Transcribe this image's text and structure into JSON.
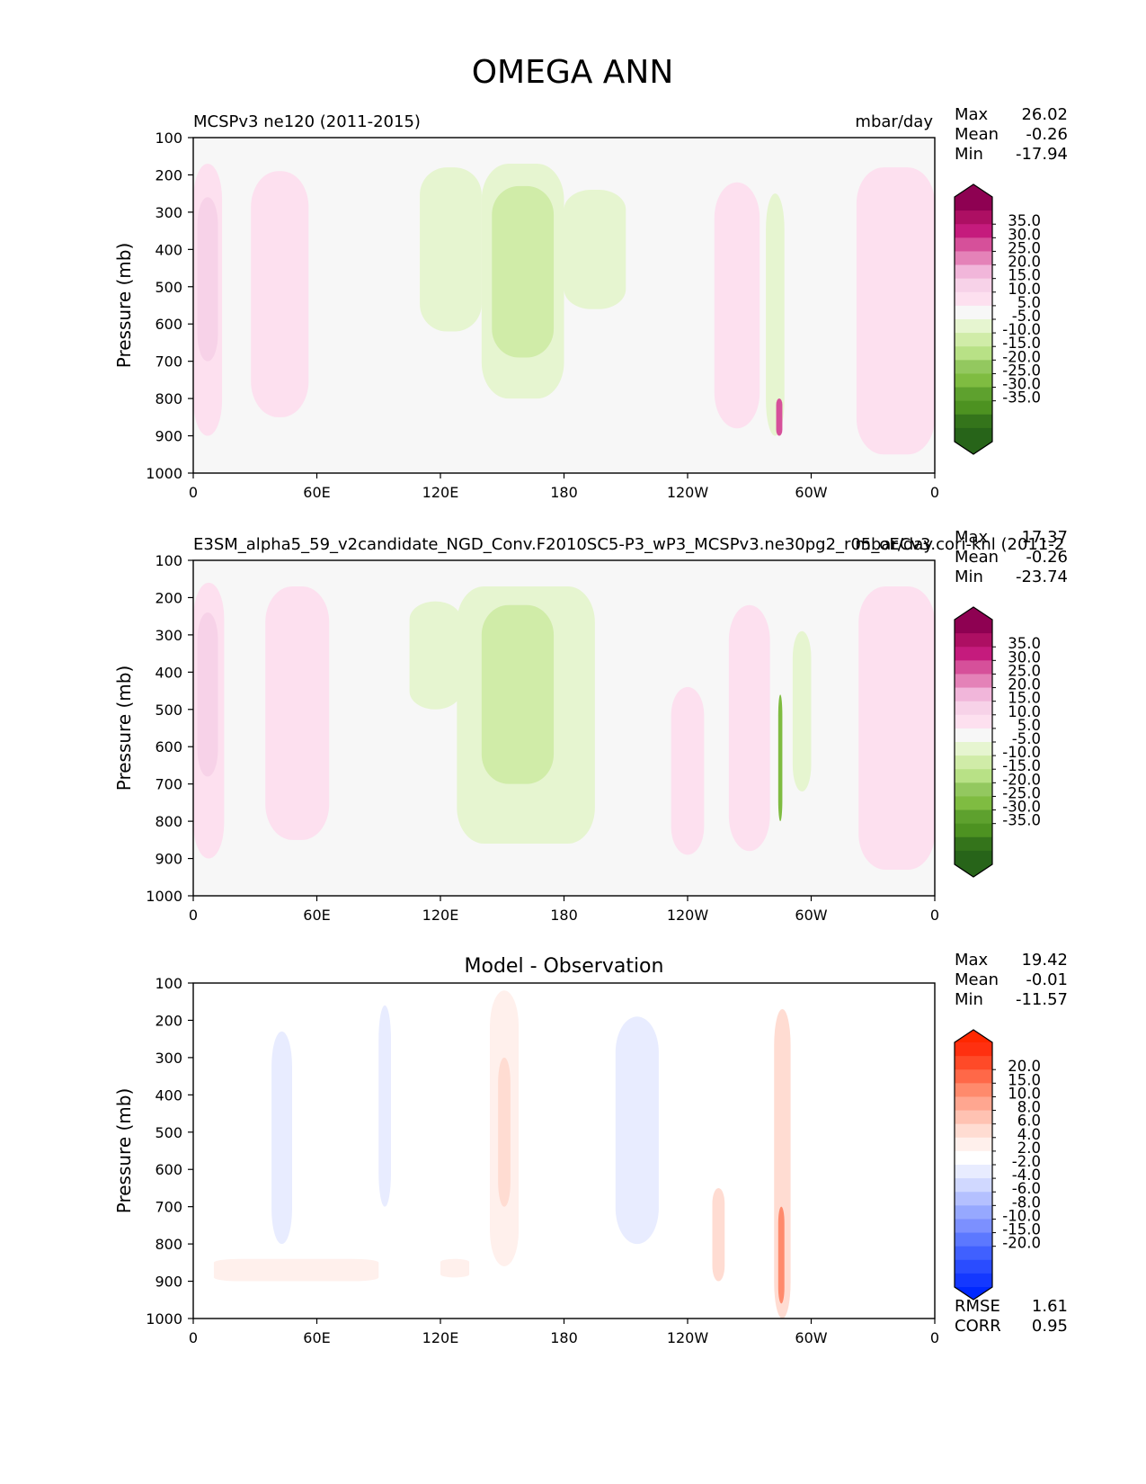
{
  "figure": {
    "title": "OMEGA ANN"
  },
  "chart_data": [
    {
      "type": "heatmap",
      "title_left": "MCSPv3 ne120 (2011-2015)",
      "title_right": "mbar/day",
      "title_center": "",
      "ylabel": "Pressure (mb)",
      "yticks": [
        "100",
        "200",
        "300",
        "400",
        "500",
        "600",
        "700",
        "800",
        "900",
        "1000"
      ],
      "ylim": [
        100,
        1000
      ],
      "xticks": [
        "0",
        "60E",
        "120E",
        "180",
        "120W",
        "60W",
        "0"
      ],
      "xlim": [
        0,
        360
      ],
      "stats": [
        {
          "label": "Max",
          "value": "26.02"
        },
        {
          "label": "Mean",
          "value": "-0.26"
        },
        {
          "label": "Min",
          "value": "-17.94"
        }
      ],
      "extra_stats": [],
      "colorbar": {
        "labels": [
          "35.0",
          "30.0",
          "25.0",
          "20.0",
          "15.0",
          "10.0",
          "5.0",
          "-5.0",
          "-10.0",
          "-15.0",
          "-20.0",
          "-25.0",
          "-30.0",
          "-35.0"
        ],
        "colors": [
          "#8e0152",
          "#ad0f63",
          "#c51b7d",
          "#d6509a",
          "#e482b8",
          "#f1b6da",
          "#f7d2e8",
          "#fde0ef",
          "#f7f7f7",
          "#e6f5d0",
          "#d0eca8",
          "#b8e186",
          "#93c85f",
          "#7fbc41",
          "#5ea12e",
          "#4d9221",
          "#34741b",
          "#276419"
        ],
        "top_color": "#8e0152",
        "bottom_color": "#276419"
      },
      "regions": [
        {
          "lon": [
            0,
            14
          ],
          "p": [
            170,
            900
          ],
          "level": "pos1"
        },
        {
          "lon": [
            2,
            12
          ],
          "p": [
            260,
            700
          ],
          "level": "pos2"
        },
        {
          "lon": [
            28,
            56
          ],
          "p": [
            190,
            850
          ],
          "level": "pos1"
        },
        {
          "lon": [
            110,
            140
          ],
          "p": [
            180,
            620
          ],
          "level": "neg1"
        },
        {
          "lon": [
            140,
            180
          ],
          "p": [
            170,
            800
          ],
          "level": "neg1"
        },
        {
          "lon": [
            145,
            175
          ],
          "p": [
            230,
            690
          ],
          "level": "neg2"
        },
        {
          "lon": [
            180,
            210
          ],
          "p": [
            240,
            560
          ],
          "level": "neg1"
        },
        {
          "lon": [
            253,
            275
          ],
          "p": [
            220,
            880
          ],
          "level": "pos1"
        },
        {
          "lon": [
            278,
            287
          ],
          "p": [
            250,
            900
          ],
          "level": "neg1"
        },
        {
          "lon": [
            283,
            286
          ],
          "p": [
            800,
            900
          ],
          "level": "pos4"
        },
        {
          "lon": [
            322,
            360
          ],
          "p": [
            180,
            950
          ],
          "level": "pos1"
        }
      ]
    },
    {
      "type": "heatmap",
      "title_left": "E3SM_alpha5_59_v2candidate_NGD_Conv.F2010SC5-P3_wP3_MCSPv3.ne30pg2_r05_oECv3.cori-knl (2011-2",
      "title_right": "mbar/day",
      "title_center": "",
      "ylabel": "Pressure (mb)",
      "yticks": [
        "100",
        "200",
        "300",
        "400",
        "500",
        "600",
        "700",
        "800",
        "900",
        "1000"
      ],
      "ylim": [
        100,
        1000
      ],
      "xticks": [
        "0",
        "60E",
        "120E",
        "180",
        "120W",
        "60W",
        "0"
      ],
      "xlim": [
        0,
        360
      ],
      "stats": [
        {
          "label": "Max",
          "value": "17.37"
        },
        {
          "label": "Mean",
          "value": "-0.26"
        },
        {
          "label": "Min",
          "value": "-23.74"
        }
      ],
      "extra_stats": [],
      "colorbar": {
        "labels": [
          "35.0",
          "30.0",
          "25.0",
          "20.0",
          "15.0",
          "10.0",
          "5.0",
          "-5.0",
          "-10.0",
          "-15.0",
          "-20.0",
          "-25.0",
          "-30.0",
          "-35.0"
        ],
        "colors": [
          "#8e0152",
          "#ad0f63",
          "#c51b7d",
          "#d6509a",
          "#e482b8",
          "#f1b6da",
          "#f7d2e8",
          "#fde0ef",
          "#f7f7f7",
          "#e6f5d0",
          "#d0eca8",
          "#b8e186",
          "#93c85f",
          "#7fbc41",
          "#5ea12e",
          "#4d9221",
          "#34741b",
          "#276419"
        ],
        "top_color": "#8e0152",
        "bottom_color": "#276419"
      },
      "regions": [
        {
          "lon": [
            0,
            15
          ],
          "p": [
            160,
            900
          ],
          "level": "pos1"
        },
        {
          "lon": [
            2,
            12
          ],
          "p": [
            240,
            680
          ],
          "level": "pos2"
        },
        {
          "lon": [
            35,
            66
          ],
          "p": [
            170,
            850
          ],
          "level": "pos1"
        },
        {
          "lon": [
            105,
            130
          ],
          "p": [
            210,
            500
          ],
          "level": "neg1"
        },
        {
          "lon": [
            128,
            195
          ],
          "p": [
            170,
            860
          ],
          "level": "neg1"
        },
        {
          "lon": [
            140,
            175
          ],
          "p": [
            220,
            700
          ],
          "level": "neg2"
        },
        {
          "lon": [
            232,
            248
          ],
          "p": [
            440,
            890
          ],
          "level": "pos1"
        },
        {
          "lon": [
            260,
            280
          ],
          "p": [
            220,
            880
          ],
          "level": "pos1"
        },
        {
          "lon": [
            291,
            300
          ],
          "p": [
            290,
            720
          ],
          "level": "neg1"
        },
        {
          "lon": [
            284,
            286
          ],
          "p": [
            460,
            800
          ],
          "level": "neg4"
        },
        {
          "lon": [
            323,
            360
          ],
          "p": [
            170,
            930
          ],
          "level": "pos1"
        }
      ]
    },
    {
      "type": "heatmap",
      "title_left": "",
      "title_right": "",
      "title_center": "Model - Observation",
      "ylabel": "Pressure (mb)",
      "yticks": [
        "100",
        "200",
        "300",
        "400",
        "500",
        "600",
        "700",
        "800",
        "900",
        "1000"
      ],
      "ylim": [
        100,
        1000
      ],
      "xticks": [
        "0",
        "60E",
        "120E",
        "180",
        "120W",
        "60W",
        "0"
      ],
      "xlim": [
        0,
        360
      ],
      "stats": [
        {
          "label": "Max",
          "value": "19.42"
        },
        {
          "label": "Mean",
          "value": "-0.01"
        },
        {
          "label": "Min",
          "value": "-11.57"
        }
      ],
      "extra_stats": [
        {
          "label": "RMSE",
          "value": "1.61"
        },
        {
          "label": "CORR",
          "value": "0.95"
        }
      ],
      "colorbar": {
        "labels": [
          "20.0",
          "15.0",
          "10.0",
          "8.0",
          "6.0",
          "4.0",
          "2.0",
          "-2.0",
          "-4.0",
          "-6.0",
          "-8.0",
          "-10.0",
          "-15.0",
          "-20.0"
        ],
        "colors": [
          "#ff3010",
          "#ff4a28",
          "#ff6848",
          "#ff8a6c",
          "#ffa690",
          "#ffc2b2",
          "#ffdcd2",
          "#fff0ec",
          "#ffffff",
          "#e8ecff",
          "#d0d8ff",
          "#b4c0ff",
          "#96a8ff",
          "#7c90ff",
          "#5c78ff",
          "#4060ff",
          "#2a4cff",
          "#1438ff"
        ],
        "top_color": "#ff2800",
        "bottom_color": "#0028ff"
      },
      "regions": [
        {
          "lon": [
            38,
            48
          ],
          "p": [
            230,
            800
          ],
          "level": "neg1"
        },
        {
          "lon": [
            90,
            96
          ],
          "p": [
            160,
            700
          ],
          "level": "neg1"
        },
        {
          "lon": [
            144,
            158
          ],
          "p": [
            120,
            860
          ],
          "level": "pos1"
        },
        {
          "lon": [
            148,
            154
          ],
          "p": [
            300,
            700
          ],
          "level": "pos2"
        },
        {
          "lon": [
            205,
            226
          ],
          "p": [
            190,
            800
          ],
          "level": "neg1"
        },
        {
          "lon": [
            252,
            258
          ],
          "p": [
            650,
            900
          ],
          "level": "pos2"
        },
        {
          "lon": [
            282,
            290
          ],
          "p": [
            170,
            1000
          ],
          "level": "pos2"
        },
        {
          "lon": [
            284,
            287
          ],
          "p": [
            700,
            960
          ],
          "level": "pos4"
        },
        {
          "lon": [
            10,
            90
          ],
          "p": [
            840,
            900
          ],
          "level": "pos1"
        },
        {
          "lon": [
            120,
            134
          ],
          "p": [
            840,
            890
          ],
          "level": "pos1"
        }
      ]
    }
  ]
}
